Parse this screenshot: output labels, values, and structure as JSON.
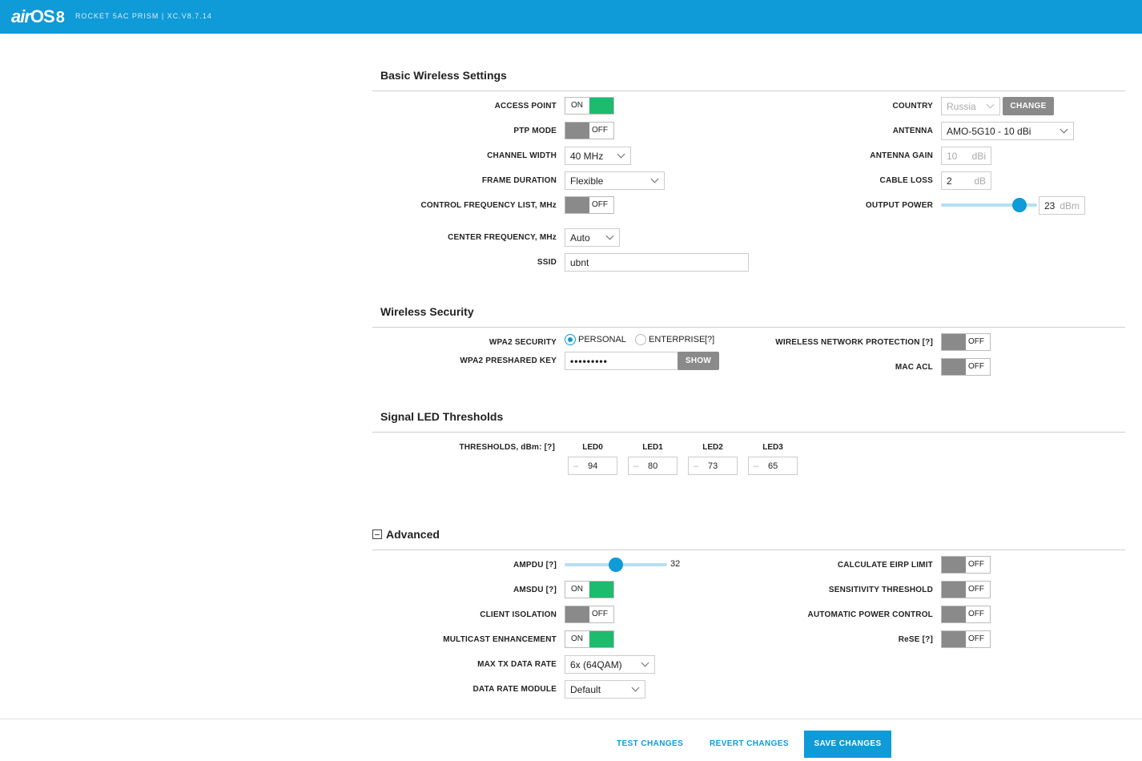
{
  "header": {
    "logo_air": "air",
    "logo_os": "OS",
    "logo_version": "8",
    "device": "ROCKET 5AC PRISM | XC.V8.7.14"
  },
  "basic": {
    "title": "Basic Wireless Settings",
    "access_point": {
      "label": "ACCESS POINT",
      "state": "ON"
    },
    "ptp_mode": {
      "label": "PTP MODE",
      "state": "OFF"
    },
    "channel_width": {
      "label": "CHANNEL WIDTH",
      "value": "40 MHz"
    },
    "frame_duration": {
      "label": "FRAME DURATION",
      "value": "Flexible"
    },
    "control_freq": {
      "label": "CONTROL FREQUENCY LIST, MHz",
      "state": "OFF"
    },
    "center_freq": {
      "label": "CENTER FREQUENCY, MHz",
      "value": "Auto"
    },
    "ssid": {
      "label": "SSID",
      "value": "ubnt"
    },
    "country": {
      "label": "COUNTRY",
      "value": "Russia",
      "button": "CHANGE"
    },
    "antenna": {
      "label": "ANTENNA",
      "value": "AMO-5G10 - 10 dBi"
    },
    "antenna_gain": {
      "label": "ANTENNA GAIN",
      "value": "10",
      "unit": "dBi"
    },
    "cable_loss": {
      "label": "CABLE LOSS",
      "value": "2",
      "unit": "dB"
    },
    "output_power": {
      "label": "OUTPUT POWER",
      "value": "23",
      "unit": "dBm",
      "slider_fraction": 0.84
    }
  },
  "security": {
    "title": "Wireless Security",
    "wpa2": {
      "label": "WPA2 SECURITY",
      "personal": "PERSONAL",
      "enterprise": "ENTERPRISE",
      "help": "[?]",
      "selected": "PERSONAL"
    },
    "psk": {
      "label": "WPA2 PRESHARED KEY",
      "value": "•••••••••",
      "button": "SHOW"
    },
    "wnp": {
      "label": "WIRELESS NETWORK PROTECTION [?]",
      "state": "OFF"
    },
    "mac_acl": {
      "label": "MAC ACL",
      "state": "OFF"
    }
  },
  "led": {
    "title": "Signal LED Thresholds",
    "label": "THRESHOLDS, dBm: [?]",
    "items": [
      {
        "name": "LED0",
        "sign": "–",
        "value": "94"
      },
      {
        "name": "LED1",
        "sign": "–",
        "value": "80"
      },
      {
        "name": "LED2",
        "sign": "–",
        "value": "73"
      },
      {
        "name": "LED3",
        "sign": "–",
        "value": "65"
      }
    ]
  },
  "advanced": {
    "title": "Advanced",
    "ampdu": {
      "label": "AMPDU [?]",
      "value": "32",
      "slider_fraction": 0.5
    },
    "amsdu": {
      "label": "AMSDU [?]",
      "state": "ON"
    },
    "client_isolation": {
      "label": "CLIENT ISOLATION",
      "state": "OFF"
    },
    "multicast": {
      "label": "MULTICAST ENHANCEMENT",
      "state": "ON"
    },
    "max_tx": {
      "label": "MAX TX DATA RATE",
      "value": "6x (64QAM)"
    },
    "data_rate_module": {
      "label": "DATA RATE MODULE",
      "value": "Default"
    },
    "eirp": {
      "label": "CALCULATE EIRP LIMIT",
      "state": "OFF"
    },
    "sensitivity": {
      "label": "SENSITIVITY THRESHOLD",
      "state": "OFF"
    },
    "apc": {
      "label": "AUTOMATIC POWER CONTROL",
      "state": "OFF"
    },
    "rese": {
      "label": "ReSE [?]",
      "state": "OFF"
    }
  },
  "footer": {
    "test": "TEST CHANGES",
    "revert": "REVERT CHANGES",
    "save": "SAVE CHANGES"
  },
  "colors": {
    "brand": "#0f9ad8",
    "on": "#1dbb6d",
    "off": "#8a8a8a"
  }
}
